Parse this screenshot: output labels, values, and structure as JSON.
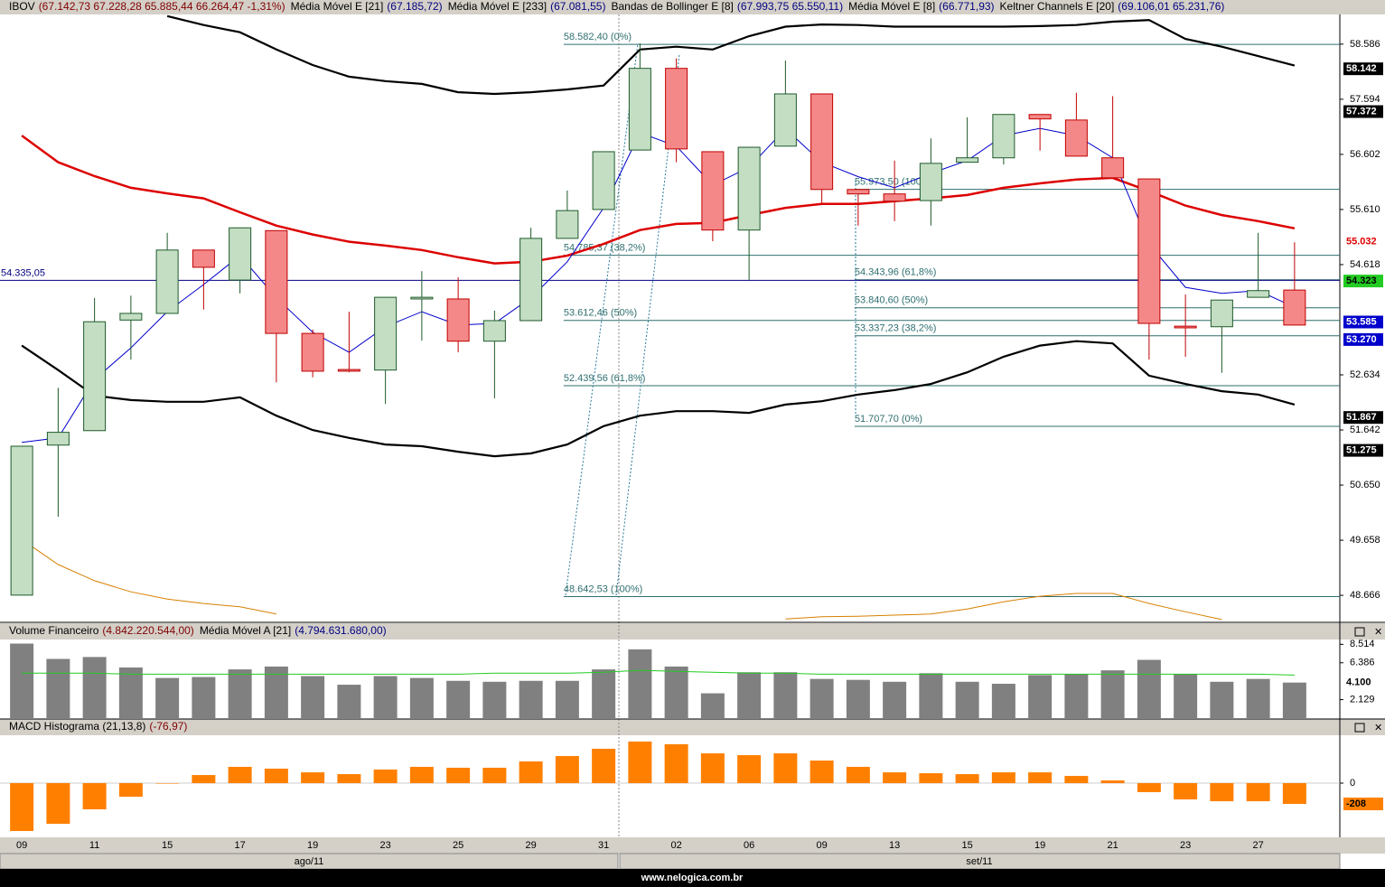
{
  "footer": "www.nelogica.com.br",
  "chart_data": [
    {
      "type": "candlestick",
      "legend": [
        {
          "name": "IBOV",
          "value": "(67.142,73  67.228,28  65.885,44  66.264,47  -1,31%)"
        },
        {
          "name": "Keltner Channels E [20]",
          "value": "(69.106,01  65.231,76)"
        }
      ],
      "categories": [
        "09",
        null,
        "11",
        null,
        "15",
        null,
        "17",
        null,
        "19",
        null,
        "23",
        null,
        "25",
        null,
        "29",
        null,
        "31",
        null,
        "02",
        null,
        "06",
        null,
        "09",
        null,
        "13",
        null,
        "15",
        null,
        "19",
        null,
        "21",
        null,
        "23",
        null,
        "27",
        null
      ],
      "months": [
        "ago/11",
        "set/11"
      ],
      "open": [
        48.67,
        51.37,
        51.63,
        53.62,
        53.74,
        54.88,
        54.34,
        55.23,
        53.38,
        52.73,
        52.72,
        54.0,
        54.0,
        53.24,
        53.61,
        55.09,
        55.61,
        56.68,
        58.15,
        56.65,
        55.24,
        56.75,
        57.69,
        55.97,
        55.89,
        55.77,
        56.46,
        56.54,
        57.32,
        57.22,
        56.54,
        56.16,
        53.51,
        53.5,
        54.03,
        54.16
      ],
      "high": [
        51.35,
        52.4,
        54.02,
        54.06,
        55.19,
        54.88,
        55.28,
        55.23,
        53.45,
        53.77,
        54.03,
        54.5,
        54.39,
        53.79,
        55.28,
        55.95,
        56.65,
        58.6,
        58.33,
        56.65,
        56.73,
        58.29,
        57.69,
        55.97,
        56.49,
        56.89,
        57.27,
        57.32,
        57.32,
        57.71,
        57.65,
        56.16,
        54.08,
        53.98,
        55.19,
        55.02
      ],
      "low": [
        48.67,
        50.08,
        51.63,
        52.91,
        53.74,
        53.81,
        54.1,
        52.5,
        52.59,
        52.68,
        52.11,
        53.25,
        53.04,
        52.21,
        53.61,
        55.09,
        55.61,
        56.68,
        56.46,
        55.04,
        54.34,
        56.75,
        55.69,
        55.32,
        55.4,
        55.32,
        56.46,
        56.42,
        56.67,
        56.57,
        56.18,
        52.91,
        52.96,
        52.67,
        54.03,
        53.53
      ],
      "close": [
        51.35,
        51.6,
        53.59,
        53.74,
        54.88,
        54.57,
        55.28,
        53.38,
        52.7,
        52.7,
        54.03,
        54.03,
        53.24,
        53.61,
        55.09,
        55.59,
        56.65,
        58.15,
        56.7,
        55.24,
        56.73,
        57.69,
        55.97,
        55.89,
        55.76,
        56.44,
        56.54,
        57.32,
        57.24,
        56.57,
        56.18,
        53.56,
        53.48,
        53.98,
        54.15,
        53.53
      ],
      "up_color": "#c4dec4",
      "down_color": "#f48888",
      "series": [
        {
          "name": "Média Móvel E [21]",
          "legend_value": "(67.185,72)",
          "color": "#dd0000",
          "width": 2.5,
          "values": [
            56.94,
            56.46,
            56.21,
            56.0,
            55.9,
            55.81,
            55.56,
            55.32,
            55.16,
            55.03,
            54.96,
            54.88,
            54.75,
            54.64,
            54.67,
            54.78,
            54.99,
            55.24,
            55.35,
            55.37,
            55.51,
            55.64,
            55.71,
            55.71,
            55.76,
            55.81,
            55.87,
            56.0,
            56.08,
            56.15,
            56.18,
            55.94,
            55.68,
            55.51,
            55.4,
            55.27
          ]
        },
        {
          "name": "Média Móvel E [233]",
          "legend_value": "(67.081,55)",
          "color": "#d88000",
          "width": 1,
          "values": [
            49.67,
            49.22,
            48.93,
            48.73,
            48.6,
            48.52,
            48.46,
            48.33,
            null,
            null,
            null,
            null,
            null,
            null,
            null,
            null,
            null,
            null,
            null,
            null,
            null,
            48.24,
            48.28,
            48.29,
            48.31,
            48.33,
            48.42,
            48.55,
            48.65,
            48.7,
            48.7,
            48.52,
            48.37,
            48.23,
            null,
            null
          ]
        },
        {
          "name": "Bandas de Bollinger E [8]",
          "legend_value": "(67.993,75  65.550,11)",
          "color": "#000000",
          "width": 2.2,
          "values": [
            null,
            null,
            null,
            null,
            59.09,
            58.93,
            58.8,
            58.49,
            58.21,
            58.0,
            57.92,
            57.87,
            57.72,
            57.69,
            57.72,
            57.77,
            57.84,
            58.49,
            58.54,
            58.49,
            58.73,
            58.9,
            58.94,
            58.93,
            58.9,
            58.9,
            58.9,
            58.9,
            58.91,
            58.93,
            58.99,
            59.02,
            58.68,
            58.54,
            58.37,
            58.2
          ],
          "lower": [
            53.16,
            52.72,
            52.26,
            52.18,
            52.15,
            52.15,
            52.23,
            51.9,
            51.64,
            51.5,
            51.38,
            51.35,
            51.25,
            51.17,
            51.22,
            51.38,
            51.71,
            51.9,
            51.98,
            51.98,
            51.95,
            52.1,
            52.16,
            52.28,
            52.36,
            52.47,
            52.68,
            52.96,
            53.16,
            53.24,
            53.2,
            52.62,
            52.47,
            52.34,
            52.28,
            52.1
          ]
        },
        {
          "name": "Média Móvel E [8]",
          "legend_value": "(66.771,93)",
          "color": "#0000cc",
          "width": 1,
          "values": [
            51.42,
            51.5,
            52.55,
            53.12,
            53.77,
            54.26,
            54.78,
            54.02,
            53.4,
            53.04,
            53.5,
            53.77,
            53.53,
            53.56,
            54.02,
            54.67,
            55.64,
            56.99,
            56.75,
            56.05,
            56.37,
            57.06,
            56.46,
            56.2,
            56.0,
            56.26,
            56.49,
            56.94,
            57.07,
            56.94,
            56.54,
            54.99,
            54.21,
            54.1,
            54.15,
            53.85
          ]
        }
      ],
      "annotations": [
        {
          "text": "58.582,40 (0%)",
          "value": 58.5824,
          "start_index": 15
        },
        {
          "text": "54.785,37 (38,2%)",
          "value": 54.78537,
          "start_index": 15
        },
        {
          "text": "53.612,46 (50%)",
          "value": 53.61246,
          "start_index": 15
        },
        {
          "text": "52.439,56 (61,8%)",
          "value": 52.43956,
          "start_index": 15
        },
        {
          "text": "48.642,53 (100%)",
          "value": 48.64253,
          "start_index": 15
        },
        {
          "text": "55.973,50 (100%)",
          "value": 55.9735,
          "start_index": 23
        },
        {
          "text": "54.343,96 (61,8%)",
          "value": 54.34396,
          "start_index": 23
        },
        {
          "text": "53.840,60 (50%)",
          "value": 53.8406,
          "start_index": 23
        },
        {
          "text": "53.337,23 (38,2%)",
          "value": 53.33723,
          "start_index": 23
        },
        {
          "text": "51.707,70 (0%)",
          "value": 51.7077,
          "start_index": 23
        }
      ],
      "hline": {
        "text": "54.335,05",
        "value": 54.33505,
        "color": "#000080"
      },
      "ylim": [
        48.18,
        59.12
      ],
      "yticks": [
        58.586,
        57.594,
        56.602,
        {
          "value": 55.61,
          "label": "55.610"
        },
        54.618,
        52.634,
        51.642,
        {
          "value": 50.65,
          "label": "50.650"
        },
        49.658,
        48.666
      ],
      "last_values": [
        {
          "value": 58.142,
          "label": "58.142",
          "bg": "#000000",
          "color": "#ffffff"
        },
        {
          "value": 57.372,
          "label": "57.372",
          "bg": "#000000",
          "color": "#ffffff"
        },
        {
          "value": 55.032,
          "label": "55.032",
          "bg": "#ffffff",
          "color": "#dd0000"
        },
        {
          "value": 54.323,
          "label": "54.323",
          "bg": "#22cc22",
          "color": "#000000"
        },
        {
          "value": 53.585,
          "label": "53.585",
          "bg": "#0000cc",
          "color": "#ffffff"
        },
        {
          "value": 53.27,
          "label": "53.270",
          "bg": "#0000cc",
          "color": "#ffffff"
        },
        {
          "value": 51.867,
          "label": "51.867",
          "bg": "#000000",
          "color": "#ffffff"
        },
        {
          "value": 51.275,
          "label": "51.275",
          "bg": "#000000",
          "color": "#ffffff"
        }
      ]
    },
    {
      "type": "bar",
      "name": "Volume Financeiro",
      "legend_value": "(4.842.220.544,00)",
      "color": "#808080",
      "values": [
        8.6,
        6.83,
        7.05,
        5.84,
        4.63,
        4.74,
        5.62,
        5.95,
        4.85,
        3.85,
        4.85,
        4.63,
        4.3,
        4.19,
        4.3,
        4.3,
        5.62,
        7.93,
        5.95,
        2.86,
        5.29,
        5.29,
        4.52,
        4.41,
        4.19,
        5.18,
        4.19,
        3.96,
        4.96,
        5.07,
        5.51,
        6.72,
        5.07,
        4.19,
        4.52,
        4.1
      ],
      "series": [
        {
          "name": "Média Móvel A [21]",
          "legend_value": "(4.794.631.680,00)",
          "color": "#22cc22",
          "width": 1,
          "values": [
            5.18,
            5.18,
            5.18,
            5.07,
            5.07,
            5.07,
            5.07,
            5.07,
            5.07,
            5.07,
            5.07,
            5.07,
            5.07,
            5.18,
            5.18,
            5.18,
            5.29,
            5.51,
            5.4,
            5.29,
            5.18,
            5.18,
            5.07,
            5.07,
            5.07,
            5.07,
            5.07,
            5.07,
            5.07,
            5.07,
            5.07,
            5.07,
            5.07,
            5.07,
            5.07,
            4.96
          ]
        }
      ],
      "ylim": [
        0,
        9.07
      ],
      "yticks": [
        8.514,
        6.386,
        2.129
      ],
      "last_values": [
        {
          "value": 4.1,
          "label": "4.100",
          "bg": "#ffffff",
          "color": "#000000"
        }
      ]
    },
    {
      "type": "bar",
      "name": "MACD Histograma (21,13,8)",
      "legend_value": "(-76,97)",
      "color": "#ff8000",
      "values": [
        -479,
        -407,
        -262,
        -136,
        -5,
        81,
        163,
        145,
        108,
        90,
        136,
        163,
        154,
        154,
        217,
        271,
        344,
        416,
        389,
        298,
        280,
        298,
        226,
        163,
        108,
        99,
        90,
        108,
        108,
        72,
        27,
        -90,
        -163,
        -181,
        -181,
        -208
      ],
      "ylim": [
        -533,
        479
      ],
      "yticks": [
        0
      ],
      "last_values": [
        {
          "value": -208,
          "label": "-208",
          "bg": "#ff8000",
          "color": "#000000"
        }
      ]
    }
  ]
}
